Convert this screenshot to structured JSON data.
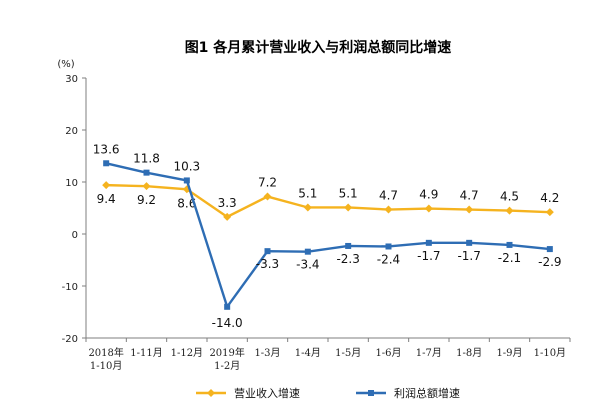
{
  "chart_data": {
    "type": "line",
    "title": "图1  各月累计营业收入与利润总额同比增速",
    "ylabel": "(%)",
    "ylim": [
      -20,
      30
    ],
    "yticks": [
      "30",
      "20",
      "10",
      "0",
      "-10",
      "-20"
    ],
    "categories": [
      [
        "2018年",
        "1-10月"
      ],
      [
        "1-11月"
      ],
      [
        "1-12月"
      ],
      [
        "2019年",
        "1-2月"
      ],
      [
        "1-3月"
      ],
      [
        "1-4月"
      ],
      [
        "1-5月"
      ],
      [
        "1-6月"
      ],
      [
        "1-7月"
      ],
      [
        "1-8月"
      ],
      [
        "1-9月"
      ],
      [
        "1-10月"
      ]
    ],
    "series": [
      {
        "name": "营业收入增速",
        "color": "#F5B31F",
        "marker": "diamond",
        "values": [
          9.4,
          9.2,
          8.6,
          3.3,
          7.2,
          5.1,
          5.1,
          4.7,
          4.9,
          4.7,
          4.5,
          4.2
        ],
        "labels": [
          "9.4",
          "9.2",
          "8.6",
          "3.3",
          "7.2",
          "5.1",
          "5.1",
          "4.7",
          "4.9",
          "4.7",
          "4.5",
          "4.2"
        ]
      },
      {
        "name": "利润总额增速",
        "color": "#2E6DB4",
        "marker": "square",
        "values": [
          13.6,
          11.8,
          10.3,
          -14.0,
          -3.3,
          -3.4,
          -2.3,
          -2.4,
          -1.7,
          -1.7,
          -2.1,
          -2.9
        ],
        "labels": [
          "13.6",
          "11.8",
          "10.3",
          "-14.0",
          "-3.3",
          "-3.4",
          "-2.3",
          "-2.4",
          "-1.7",
          "-1.7",
          "-2.1",
          "-2.9"
        ]
      }
    ],
    "legend": {
      "position": "bottom"
    }
  }
}
